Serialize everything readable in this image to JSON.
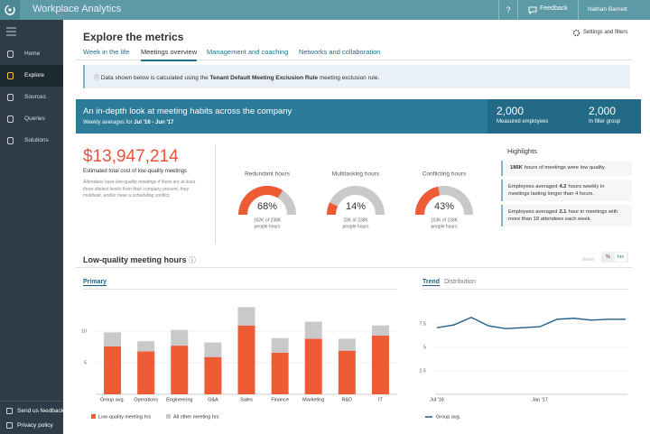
{
  "app": {
    "title": "Workplace Analytics",
    "help": "?",
    "feedback": "Feedback",
    "user": "Nathan Barnett"
  },
  "nav": {
    "items": [
      "Home",
      "Explore",
      "Sources",
      "Queries",
      "Solutions"
    ],
    "active": 1,
    "footer": [
      "Send us feedback",
      "Privacy policy"
    ]
  },
  "header": {
    "title": "Explore the metrics",
    "settings": "Settings and filters",
    "tabs": [
      "Week in the life",
      "Meetings overview",
      "Management and coaching",
      "Networks and collaboration"
    ],
    "active_tab": 1
  },
  "notice": {
    "before": "Data shown below is calculated using the",
    "rule": "Tenant Default Meeting Exclusion Rule",
    "after": "meeting exclusion rule."
  },
  "banner": {
    "title": "An in-depth look at meeting habits across the company",
    "subtitle": "Weekly averages for",
    "period": "Jul '16 - Jun '17",
    "stats": [
      {
        "value": "2,000",
        "label": "Measured employees"
      },
      {
        "value": "2,000",
        "label": "In filter group"
      }
    ]
  },
  "cost": {
    "amount": "$13,947,214",
    "label": "Estimated total cost of low-quality meetings",
    "note": "Attendees have low-quality meetings if there are at least three distinct levels from their company present, they multitask, and/or have a scheduling conflict."
  },
  "gauges": [
    {
      "title": "Redundant hours",
      "value": 68,
      "value_label": "68%",
      "detail": "162K of 238K",
      "unit": "people hours"
    },
    {
      "title": "Multitasking hours",
      "value": 14,
      "value_label": "14%",
      "detail": "32K of 238K",
      "unit": "people hours"
    },
    {
      "title": "Conflicting hours",
      "value": 43,
      "value_label": "43%",
      "detail": "103K of 238K",
      "unit": "people hours"
    }
  ],
  "highlights": {
    "title": "Highlights",
    "items": [
      {
        "pre": "",
        "bold": "186K",
        "post": "hours of meetings were low quality."
      },
      {
        "pre": "Employees averaged",
        "bold": "4.2",
        "post": "hours weekly in meetings lasting longer than 4 hours."
      },
      {
        "pre": "Employees averaged",
        "bold": "2.1",
        "post": "hour in meetings with more than 18 attendees each week."
      }
    ]
  },
  "section": {
    "title": "Low-quality meeting hours",
    "reset": "Reset",
    "toggle": [
      "%",
      "hrs"
    ],
    "active": 1
  },
  "primary_chart": {
    "type": "bar",
    "tab": "Primary",
    "categories": [
      "Group avg.",
      "Operations",
      "Engineering",
      "G&A",
      "Sales",
      "Finance",
      "Marketing",
      "R&D",
      "IT"
    ],
    "series": [
      {
        "name": "Low-quality meeting hrs",
        "color": "#ef5b35",
        "values": [
          7.6,
          6.8,
          7.7,
          5.9,
          10.9,
          6.6,
          8.8,
          6.9,
          9.3
        ]
      },
      {
        "name": "All other meeting hrs",
        "color": "#c9c9c9",
        "values": [
          2.2,
          1.6,
          2.5,
          2.3,
          2.9,
          2.3,
          2.7,
          1.9,
          1.6
        ]
      }
    ],
    "stacked": true,
    "ylim": [
      0,
      15
    ],
    "yticks": [
      5,
      10
    ],
    "grid": true
  },
  "trend_chart": {
    "type": "line",
    "tabs": [
      "Trend",
      "Distribution"
    ],
    "active_tab": 0,
    "categories": [
      "Jul '16",
      null,
      null,
      null,
      null,
      null,
      "Jan '17",
      null,
      null,
      null,
      null,
      null
    ],
    "series": [
      {
        "name": "Group avg.",
        "color": "#1f5f85",
        "values": [
          7.1,
          7.4,
          8.2,
          7.3,
          7.0,
          7.1,
          7.2,
          8.0,
          8.1,
          7.9,
          8.0,
          8.0
        ]
      }
    ],
    "ylim": [
      0,
      10
    ],
    "yticks": [
      2.5,
      5,
      7.5
    ],
    "grid": true
  }
}
